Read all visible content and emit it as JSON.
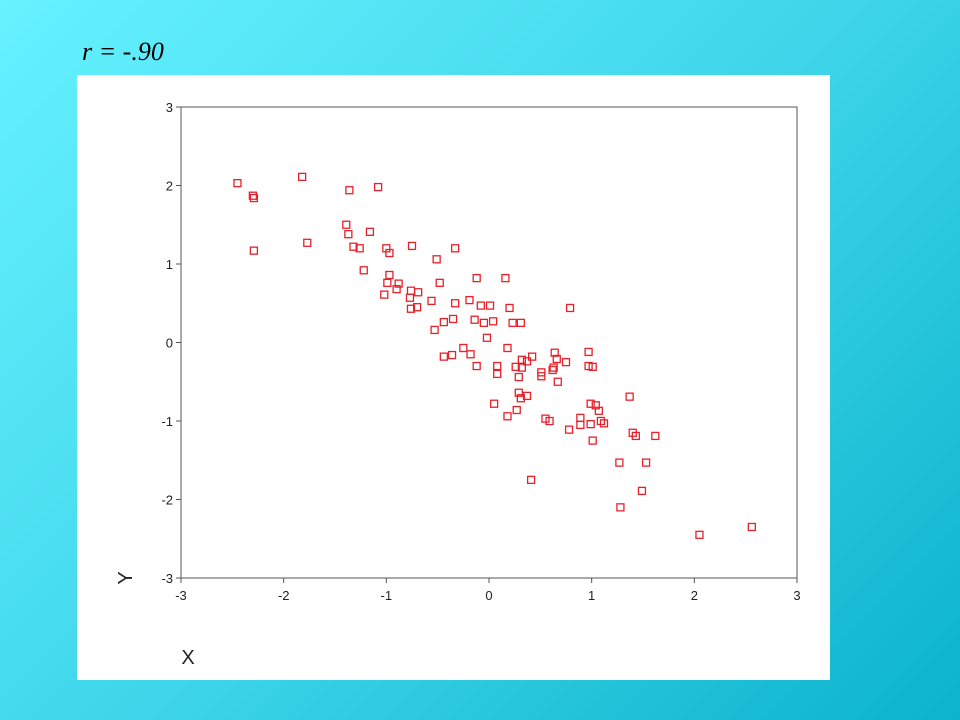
{
  "chart_data": {
    "type": "scatter",
    "title": "r = -.90",
    "x_label": "X",
    "y_label": "Y",
    "color": "#e8202a",
    "grid": false,
    "xlim": [
      -3,
      3
    ],
    "ylim": [
      -3,
      3
    ],
    "xticks": [
      -3,
      -2,
      -1,
      0,
      1,
      2,
      3
    ],
    "yticks": [
      -3,
      -2,
      -1,
      0,
      1,
      2,
      3
    ],
    "x": [
      -2.45,
      -2.3,
      -2.29,
      -2.29,
      -1.82,
      -1.77,
      -1.36,
      -1.08,
      -1.39,
      -1.37,
      -1.32,
      -1.26,
      -1.16,
      -1.22,
      -1.0,
      -0.97,
      -0.75,
      -0.33,
      -0.51,
      -0.97,
      -0.99,
      -0.88,
      -0.9,
      -1.02,
      -0.76,
      -0.69,
      -0.77,
      -0.76,
      -0.7,
      -0.48,
      -0.56,
      -0.33,
      -0.19,
      -0.12,
      0.16,
      -0.44,
      -0.35,
      -0.53,
      -0.14,
      -0.08,
      0.01,
      -0.05,
      0.04,
      0.2,
      0.23,
      0.31,
      0.79,
      -0.02,
      0.18,
      -0.44,
      -0.36,
      -0.25,
      -0.18,
      -0.12,
      0.08,
      0.08,
      0.26,
      0.32,
      0.37,
      0.32,
      0.42,
      0.29,
      0.51,
      0.51,
      0.63,
      0.64,
      0.66,
      0.62,
      0.75,
      0.67,
      0.97,
      0.97,
      1.01,
      0.29,
      0.31,
      0.37,
      0.05,
      0.18,
      0.27,
      0.55,
      0.59,
      0.41,
      0.78,
      0.89,
      0.89,
      0.99,
      1.04,
      1.07,
      0.99,
      1.09,
      1.12,
      1.01,
      1.37,
      1.4,
      1.43,
      1.62,
      1.27,
      1.53,
      1.49,
      1.28,
      2.05,
      2.56
    ],
    "values": [
      2.03,
      1.87,
      1.84,
      1.17,
      2.11,
      1.27,
      1.94,
      1.98,
      1.5,
      1.38,
      1.22,
      1.2,
      1.41,
      0.92,
      1.2,
      1.14,
      1.23,
      1.2,
      1.06,
      0.86,
      0.76,
      0.75,
      0.68,
      0.61,
      0.66,
      0.64,
      0.57,
      0.43,
      0.45,
      0.76,
      0.53,
      0.5,
      0.54,
      0.82,
      0.82,
      0.26,
      0.3,
      0.16,
      0.29,
      0.47,
      0.47,
      0.25,
      0.27,
      0.44,
      0.25,
      0.25,
      0.44,
      0.06,
      -0.07,
      -0.18,
      -0.16,
      -0.07,
      -0.15,
      -0.3,
      -0.3,
      -0.4,
      -0.31,
      -0.22,
      -0.24,
      -0.32,
      -0.18,
      -0.44,
      -0.38,
      -0.43,
      -0.32,
      -0.13,
      -0.21,
      -0.35,
      -0.25,
      -0.5,
      -0.12,
      -0.3,
      -0.31,
      -0.64,
      -0.71,
      -0.68,
      -0.78,
      -0.94,
      -0.86,
      -0.97,
      -1.0,
      -1.75,
      -1.11,
      -1.05,
      -0.96,
      -0.78,
      -0.8,
      -0.87,
      -1.04,
      -1.0,
      -1.03,
      -1.25,
      -0.69,
      -1.15,
      -1.19,
      -1.19,
      -1.53,
      -1.53,
      -1.89,
      -2.1,
      -2.45,
      -2.35
    ]
  }
}
